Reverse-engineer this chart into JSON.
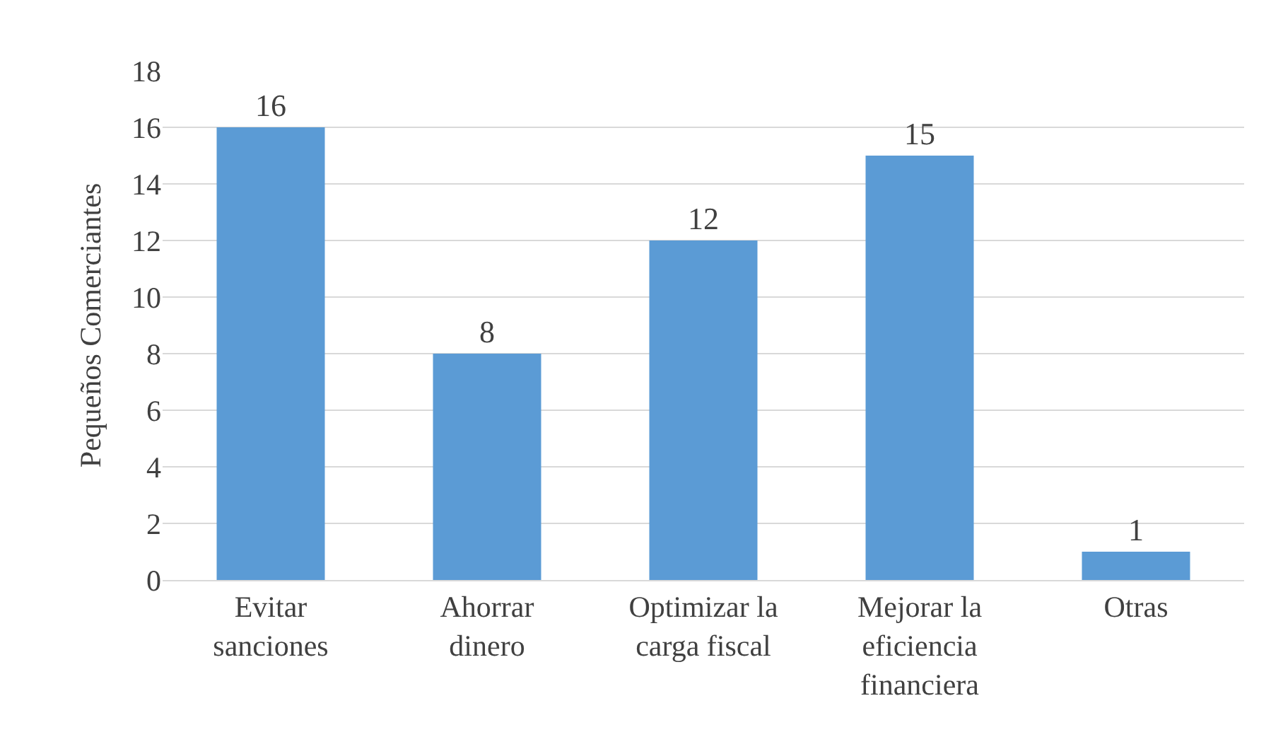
{
  "chart_data": {
    "type": "bar",
    "ylabel": "Pequeños Comerciantes",
    "categories": [
      "Evitar\nsanciones",
      "Ahorrar\ndinero",
      "Optimizar la\ncarga fiscal",
      "Mejorar la\neficiencia\nfinanciera",
      "Otras"
    ],
    "values": [
      16,
      8,
      12,
      15,
      1
    ],
    "color": "#5b9bd5",
    "ylim": [
      0,
      18
    ],
    "yticks": [
      0,
      2,
      4,
      6,
      8,
      10,
      12,
      14,
      16,
      18
    ],
    "grid": "y",
    "data_labels": true
  }
}
